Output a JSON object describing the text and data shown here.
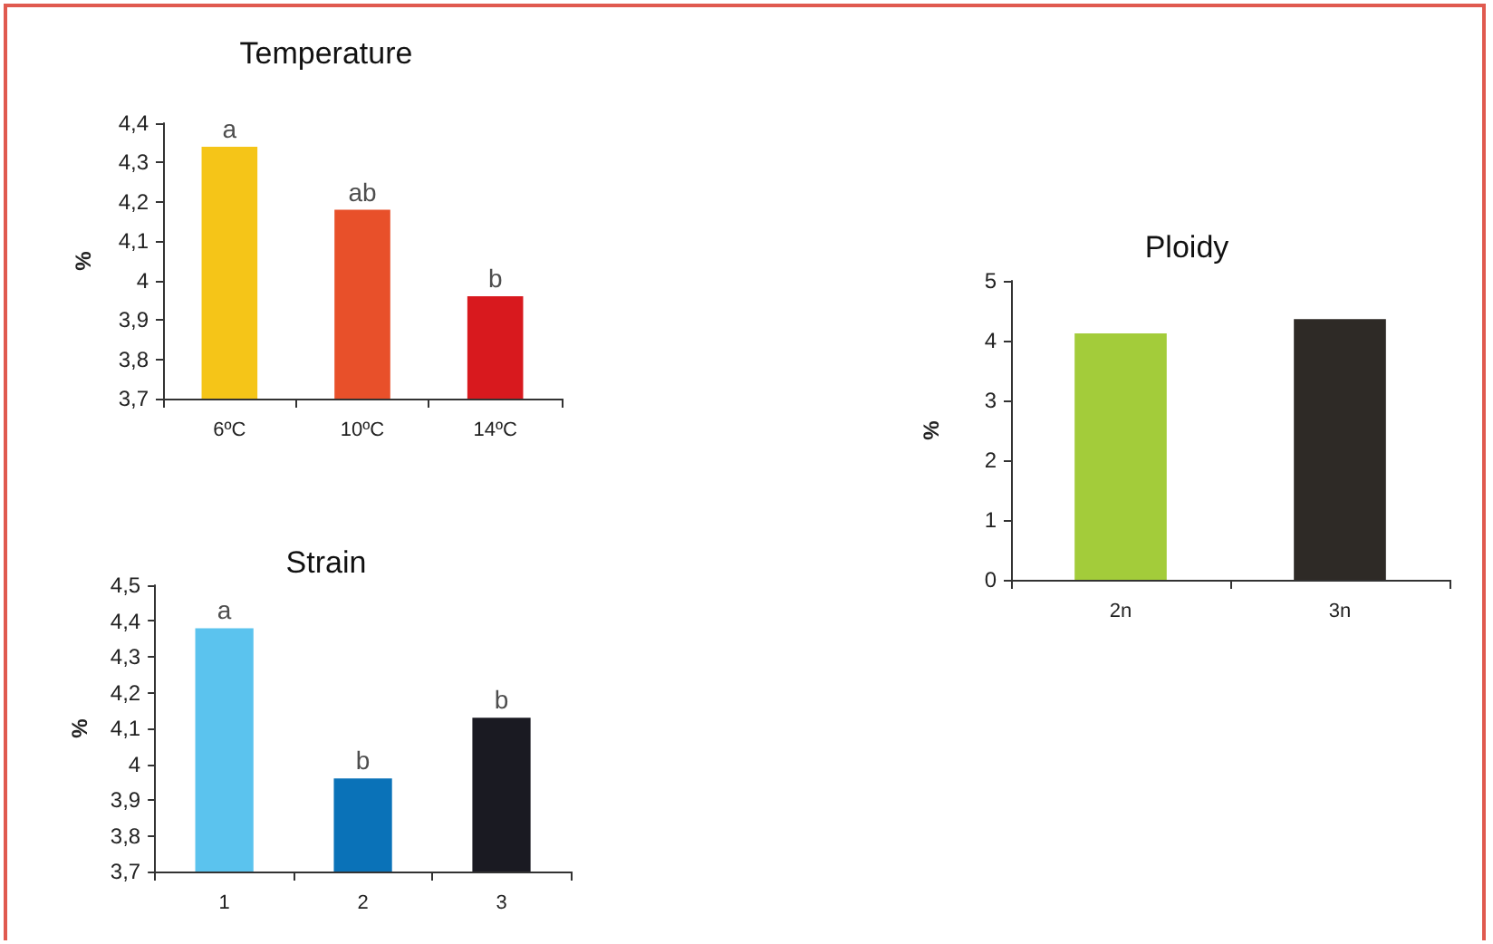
{
  "chart_data": [
    {
      "type": "bar",
      "title": "Temperature",
      "ylabel": "%",
      "categories": [
        "6ºC",
        "10ºC",
        "14ºC"
      ],
      "values": [
        4.34,
        4.18,
        3.96
      ],
      "colors": [
        "#f5c518",
        "#e8502a",
        "#d8191e"
      ],
      "ylim": [
        3.7,
        4.4
      ],
      "yticks": [
        {
          "value": 3.7,
          "label": "3,7"
        },
        {
          "value": 3.8,
          "label": "3,8"
        },
        {
          "value": 3.9,
          "label": "3,9"
        },
        {
          "value": 4,
          "label": "4"
        },
        {
          "value": 4.1,
          "label": "4,1"
        },
        {
          "value": 4.2,
          "label": "4,2"
        },
        {
          "value": 4.3,
          "label": "4,3"
        },
        {
          "value": 4.4,
          "label": "4,4"
        }
      ],
      "grid": false,
      "annotations": [
        {
          "text": "a",
          "x": "6ºC",
          "y": 4.34
        },
        {
          "text": "ab",
          "x": "10ºC",
          "y": 4.18
        },
        {
          "text": "b",
          "x": "14ºC",
          "y": 3.96
        }
      ]
    },
    {
      "type": "bar",
      "title": "Strain",
      "ylabel": "%",
      "categories": [
        "1",
        "2",
        "3"
      ],
      "values": [
        4.38,
        3.96,
        4.13
      ],
      "colors": [
        "#5bc3ee",
        "#0a72b8",
        "#1a1a22"
      ],
      "ylim": [
        3.7,
        4.5
      ],
      "yticks": [
        {
          "value": 3.7,
          "label": "3,7"
        },
        {
          "value": 3.8,
          "label": "3,8"
        },
        {
          "value": 3.9,
          "label": "3,9"
        },
        {
          "value": 4,
          "label": "4"
        },
        {
          "value": 4.1,
          "label": "4,1"
        },
        {
          "value": 4.2,
          "label": "4,2"
        },
        {
          "value": 4.3,
          "label": "4,3"
        },
        {
          "value": 4.4,
          "label": "4,4"
        },
        {
          "value": 4.5,
          "label": "4,5"
        }
      ],
      "grid": false,
      "annotations": [
        {
          "text": "a",
          "x": "1",
          "y": 4.38
        },
        {
          "text": "b",
          "x": "2",
          "y": 3.96
        },
        {
          "text": "b",
          "x": "3",
          "y": 4.13
        }
      ]
    },
    {
      "type": "bar",
      "title": "Ploidy",
      "ylabel": "%",
      "categories": [
        "2n",
        "3n"
      ],
      "values": [
        4.12,
        4.36
      ],
      "colors": [
        "#a3cc3a",
        "#2e2a26"
      ],
      "ylim": [
        0,
        5
      ],
      "yticks": [
        0,
        1,
        2,
        3,
        4,
        5
      ],
      "grid": false
    }
  ]
}
